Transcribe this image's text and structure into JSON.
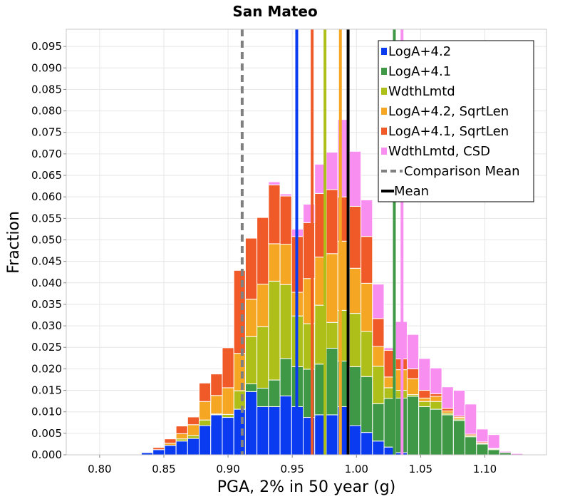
{
  "chart_data": {
    "type": "bar",
    "subtype": "stacked-histogram",
    "title": "San Mateo",
    "xlabel": "PGA, 2% in 50 year (g)",
    "ylabel": "Fraction",
    "xlim": [
      0.774,
      1.148
    ],
    "ylim": [
      0,
      0.099
    ],
    "grid": true,
    "legend_position": "top-right",
    "bin_start": 0.8325,
    "bin_width": 0.009,
    "xticks": [
      "0.80",
      "0.85",
      "0.90",
      "0.95",
      "1.00",
      "1.05",
      "1.10"
    ],
    "xtick_values": [
      0.8,
      0.85,
      0.9,
      0.95,
      1.0,
      1.05,
      1.1
    ],
    "yticks": [
      "0.000",
      "0.005",
      "0.010",
      "0.015",
      "0.020",
      "0.025",
      "0.030",
      "0.035",
      "0.040",
      "0.045",
      "0.050",
      "0.055",
      "0.060",
      "0.065",
      "0.070",
      "0.075",
      "0.080",
      "0.085",
      "0.090",
      "0.095"
    ],
    "ytick_values": [
      0,
      0.005,
      0.01,
      0.015,
      0.02,
      0.025,
      0.03,
      0.035,
      0.04,
      0.045,
      0.05,
      0.055,
      0.06,
      0.065,
      0.07,
      0.075,
      0.08,
      0.085,
      0.09,
      0.095
    ],
    "series": [
      {
        "name": "LogA+4.2",
        "color": "#0b3bf0",
        "values": [
          0.0005,
          0.0012,
          0.0022,
          0.0032,
          0.0038,
          0.0068,
          0.0093,
          0.0087,
          0.0106,
          0.0147,
          0.0112,
          0.0112,
          0.0137,
          0.0112,
          0.0087,
          0.0093,
          0.0093,
          0.0112,
          0.0068,
          0.0052,
          0.0032,
          0.0018,
          0.0005,
          0,
          0,
          0,
          0,
          0,
          0,
          0,
          0,
          0,
          0
        ]
      },
      {
        "name": "LogA+4.1",
        "color": "#3f9846",
        "values": [
          0,
          0,
          0,
          0,
          0,
          0,
          0,
          0,
          0,
          0.0018,
          0.0043,
          0.0062,
          0.0087,
          0.0093,
          0.0112,
          0.0118,
          0.0155,
          0.0106,
          0.0137,
          0.013,
          0.0087,
          0.0113,
          0.0127,
          0.0136,
          0.0112,
          0.0106,
          0.0093,
          0.008,
          0.0042,
          0.0025,
          0.0012,
          0.0005,
          0
        ]
      },
      {
        "name": "WdthLmtd",
        "color": "#aebf1a",
        "values": [
          0,
          0,
          0,
          0.0005,
          0.0007,
          0.0013,
          0.0002,
          0.0007,
          0.0043,
          0.011,
          0.0143,
          0.023,
          0.0172,
          0.0118,
          0.0106,
          0.0137,
          0.006,
          0.0118,
          0.0124,
          0.0105,
          0.0087,
          0.0025,
          0.0018,
          0.0004,
          0.0012,
          0.0018,
          0.0004,
          0.0003,
          0.0003,
          0.0002,
          0.0002,
          0,
          0
        ]
      },
      {
        "name": "LogA+4.2, SqrtLen",
        "color": "#f5a623",
        "values": [
          0,
          0,
          0.0005,
          0.0012,
          0.0025,
          0.0043,
          0.0043,
          0.0062,
          0.0087,
          0.0087,
          0.0099,
          0.0087,
          0.0094,
          0.0055,
          0.0105,
          0.0112,
          0.016,
          0.0161,
          0.0105,
          0.0112,
          0.0046,
          0.0025,
          0.0048,
          0.0037,
          0.0008,
          0.0012,
          0.0005,
          0.0004,
          0,
          0,
          0,
          0,
          0
        ]
      },
      {
        "name": "LogA+4.1, SqrtLen",
        "color": "#f05a28",
        "values": [
          0,
          0.0005,
          0.001,
          0.0018,
          0.0018,
          0.0043,
          0.005,
          0.0093,
          0.0193,
          0.0142,
          0.0155,
          0.0137,
          0.0112,
          0.013,
          0.013,
          0.0148,
          0.0149,
          0.0103,
          0.0144,
          0.0109,
          0.0065,
          0.0062,
          0.0025,
          0.0023,
          0.0018,
          0.0006,
          0.0006,
          0.0003,
          0.0003,
          0.0003,
          0.0001,
          0,
          0
        ]
      },
      {
        "name": "WdthLmtd, CSD",
        "color": "#f78ef0",
        "values": [
          0,
          0,
          0,
          0,
          0,
          0,
          0,
          0,
          0,
          0,
          0,
          0.0007,
          0.0005,
          0.0017,
          0.0043,
          0.0068,
          0.0087,
          0.018,
          0.0128,
          0.0085,
          0.008,
          0.0006,
          0.0087,
          0.008,
          0.0074,
          0.006,
          0.005,
          0.006,
          0.007,
          0.003,
          0.0032,
          0.0003,
          0.0003
        ]
      }
    ],
    "lines": [
      {
        "name": "LogA+4.2 mean",
        "x": 0.9535,
        "color": "#0b3bf0",
        "style": "solid"
      },
      {
        "name": "LogA+4.1, SqrtLen mean",
        "x": 0.9655,
        "color": "#f05a28",
        "style": "solid"
      },
      {
        "name": "WdthLmtd mean",
        "x": 0.9755,
        "color": "#aebf1a",
        "style": "solid"
      },
      {
        "name": "LogA+4.2, SqrtLen mean",
        "x": 0.9875,
        "color": "#f5a623",
        "style": "solid"
      },
      {
        "name": "LogA+4.1 mean",
        "x": 1.0295,
        "color": "#3f9846",
        "style": "solid"
      },
      {
        "name": "WdthLmtd, CSD mean",
        "x": 1.0355,
        "color": "#f78ef0",
        "style": "solid"
      },
      {
        "name": "Comparison Mean",
        "x": 0.911,
        "color": "#808080",
        "style": "dashed"
      },
      {
        "name": "Mean",
        "x": 0.9935,
        "color": "#000000",
        "style": "solid"
      }
    ],
    "legend": [
      {
        "label": "LogA+4.2",
        "color": "#0b3bf0",
        "kind": "patch"
      },
      {
        "label": "LogA+4.1",
        "color": "#3f9846",
        "kind": "patch"
      },
      {
        "label": "WdthLmtd",
        "color": "#aebf1a",
        "kind": "patch"
      },
      {
        "label": "LogA+4.2, SqrtLen",
        "color": "#f5a623",
        "kind": "patch"
      },
      {
        "label": "LogA+4.1, SqrtLen",
        "color": "#f05a28",
        "kind": "patch"
      },
      {
        "label": "WdthLmtd, CSD",
        "color": "#f78ef0",
        "kind": "patch"
      },
      {
        "label": "Comparison Mean",
        "color": "#808080",
        "kind": "dashed-line"
      },
      {
        "label": "Mean",
        "color": "#000000",
        "kind": "line"
      }
    ]
  }
}
